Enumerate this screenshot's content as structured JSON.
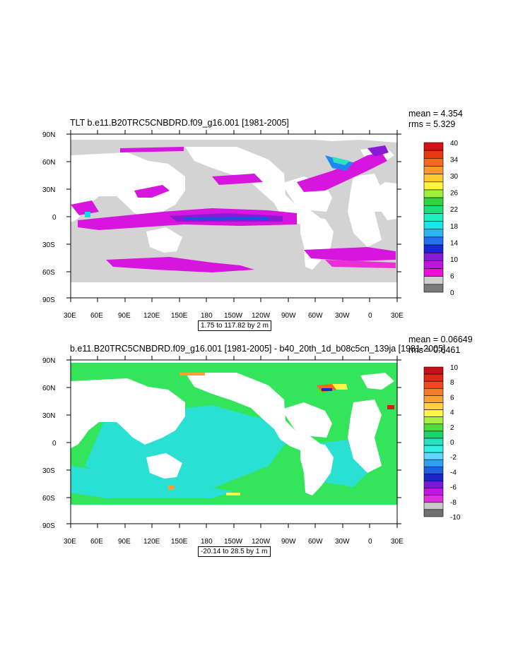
{
  "panels": [
    {
      "id": "top",
      "title": "TLT b.e11.B20TRC5CNBDRD.f09_g16.001 [1981-2005]",
      "stats": {
        "mean": "mean = 4.354",
        "rms": "rms = 5.329"
      },
      "range_text": "1.75 to 117.82 by 2 m",
      "lat_labels": [
        "90N",
        "60N",
        "30N",
        "0",
        "30S",
        "60S",
        "90S"
      ],
      "lon_labels": [
        "30E",
        "60E",
        "90E",
        "120E",
        "150E",
        "180",
        "150W",
        "120W",
        "90W",
        "60W",
        "30W",
        "0",
        "30E"
      ],
      "colorbar": {
        "labels": [
          "40",
          "34",
          "30",
          "26",
          "22",
          "18",
          "14",
          "10",
          "6",
          "0"
        ],
        "colors": [
          "#d51016",
          "#e83a12",
          "#f56a1a",
          "#f99a2a",
          "#ffc82e",
          "#fff53a",
          "#9ef03c",
          "#31d341",
          "#19e07a",
          "#1ef0c3",
          "#18e6ef",
          "#2eb4f5",
          "#2471f0",
          "#1828d6",
          "#8a1ad6",
          "#c012e0",
          "#ea10d8",
          "#cfcfcf",
          "#7a7a7a"
        ]
      }
    },
    {
      "id": "bottom",
      "title": "b.e11.B20TRC5CNBDRD.f09_g16.001 [1981-2005] - b40_20th_1d_b08c5cn_139ja [1981-2005]",
      "stats": {
        "mean": "mean = 0.06649",
        "rms": "rms = 0.6461"
      },
      "range_text": "-20.14 to 28.5 by 1 m",
      "lat_labels": [
        "90N",
        "60N",
        "30N",
        "0",
        "30S",
        "60S",
        "90S"
      ],
      "lon_labels": [
        "30E",
        "60E",
        "90E",
        "120E",
        "150E",
        "180",
        "150W",
        "120W",
        "90W",
        "60W",
        "30W",
        "0",
        "30E"
      ],
      "colorbar": {
        "labels": [
          "10",
          "8",
          "6",
          "4",
          "2",
          "0",
          "-2",
          "-4",
          "-6",
          "-8",
          "-10"
        ],
        "colors": [
          "#c4101a",
          "#e02818",
          "#f04a1a",
          "#f77a26",
          "#fba034",
          "#ffd23a",
          "#fff44a",
          "#a8f040",
          "#4fdc3a",
          "#20d06a",
          "#2ae0c0",
          "#34f0e4",
          "#5cd8ff",
          "#2ea0f0",
          "#2060e0",
          "#1a28c8",
          "#7a1ad0",
          "#c018e0",
          "#e030dc",
          "#c8c8c8",
          "#707070"
        ]
      }
    }
  ]
}
